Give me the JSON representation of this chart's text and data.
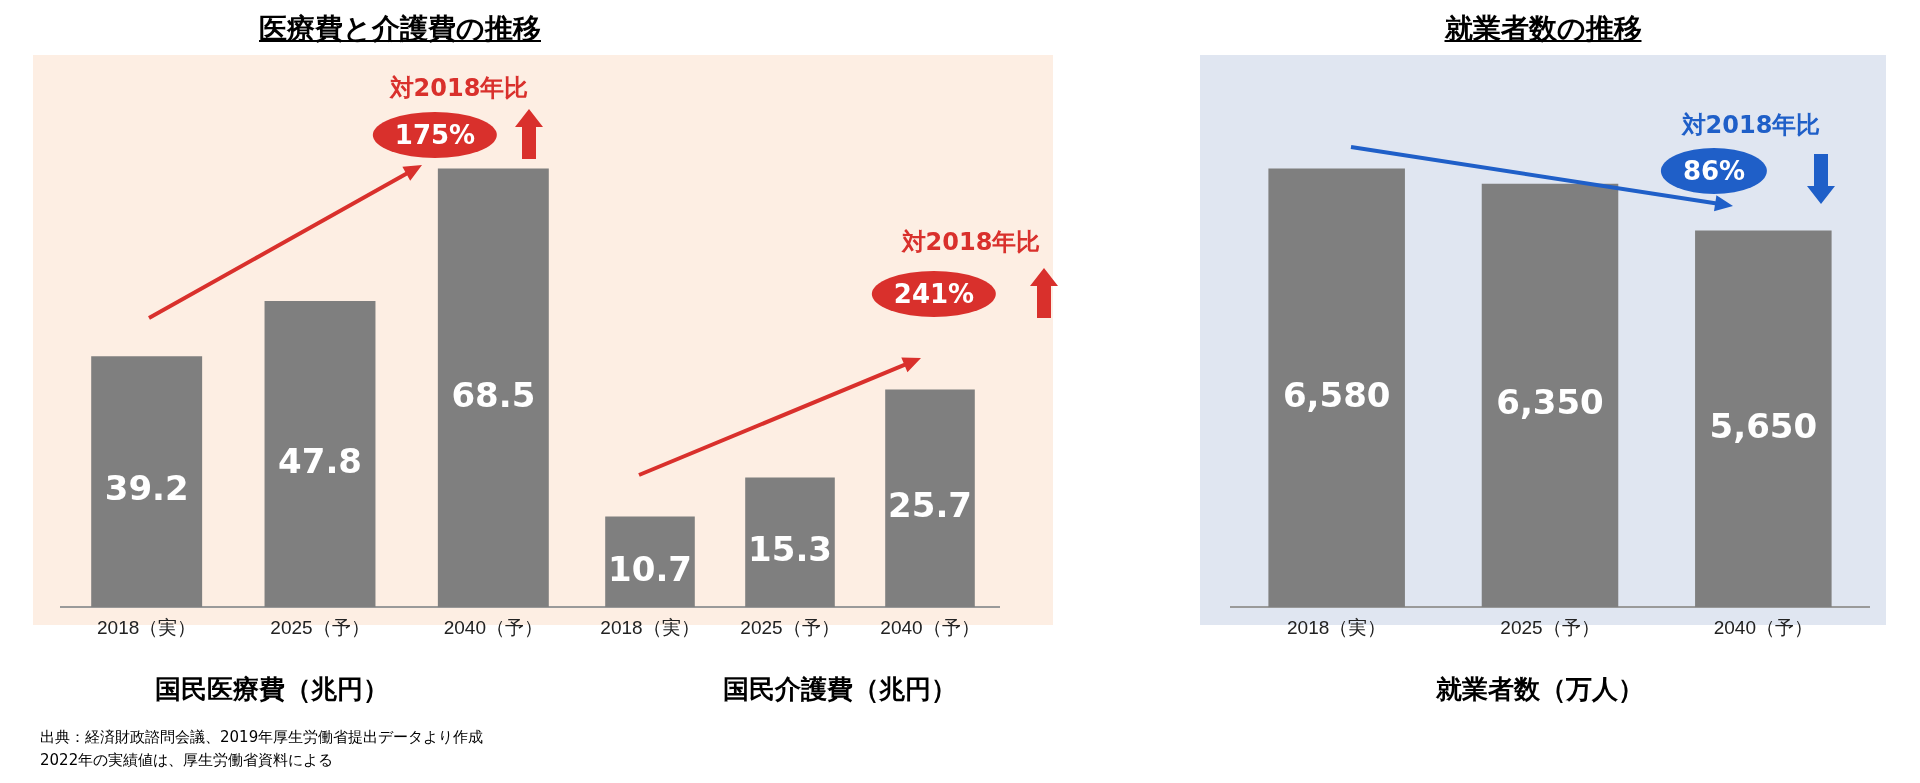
{
  "chart_data": [
    {
      "type": "bar",
      "title": "医療費と介護費の推移",
      "xlabel": "国民医療費（兆円）",
      "categories": [
        "2018（実）",
        "2025（予）",
        "2040（予）"
      ],
      "values": [
        39.2,
        47.8,
        68.5
      ],
      "color": "#7f7f7f",
      "data_labels": true,
      "annotations": [
        "対2018年比",
        "175%"
      ]
    },
    {
      "type": "bar",
      "xlabel": "国民介護費（兆円）",
      "categories": [
        "2018（実）",
        "2025（予）",
        "2040（予）"
      ],
      "values": [
        10.7,
        15.3,
        25.7
      ],
      "color": "#7f7f7f",
      "data_labels": true,
      "annotations": [
        "対2018年比",
        "241%"
      ]
    },
    {
      "type": "bar",
      "title": "就業者数の推移",
      "xlabel": "就業者数（万人）",
      "categories": [
        "2018（実）",
        "2025（予）",
        "2040（予）"
      ],
      "values": [
        6580,
        6350,
        5650
      ],
      "value_labels": [
        "6,580",
        "6,350",
        "5,650"
      ],
      "color": "#7f7f7f",
      "annotations": [
        "対2018年比",
        "86%"
      ]
    },
    {
      "type": "other",
      "annotations": [
        "出典：経済財政諮問会議、2019年厚生労働省提出データより作成",
        "2022年の実績値は、厚生労働省資料による"
      ]
    }
  ]
}
